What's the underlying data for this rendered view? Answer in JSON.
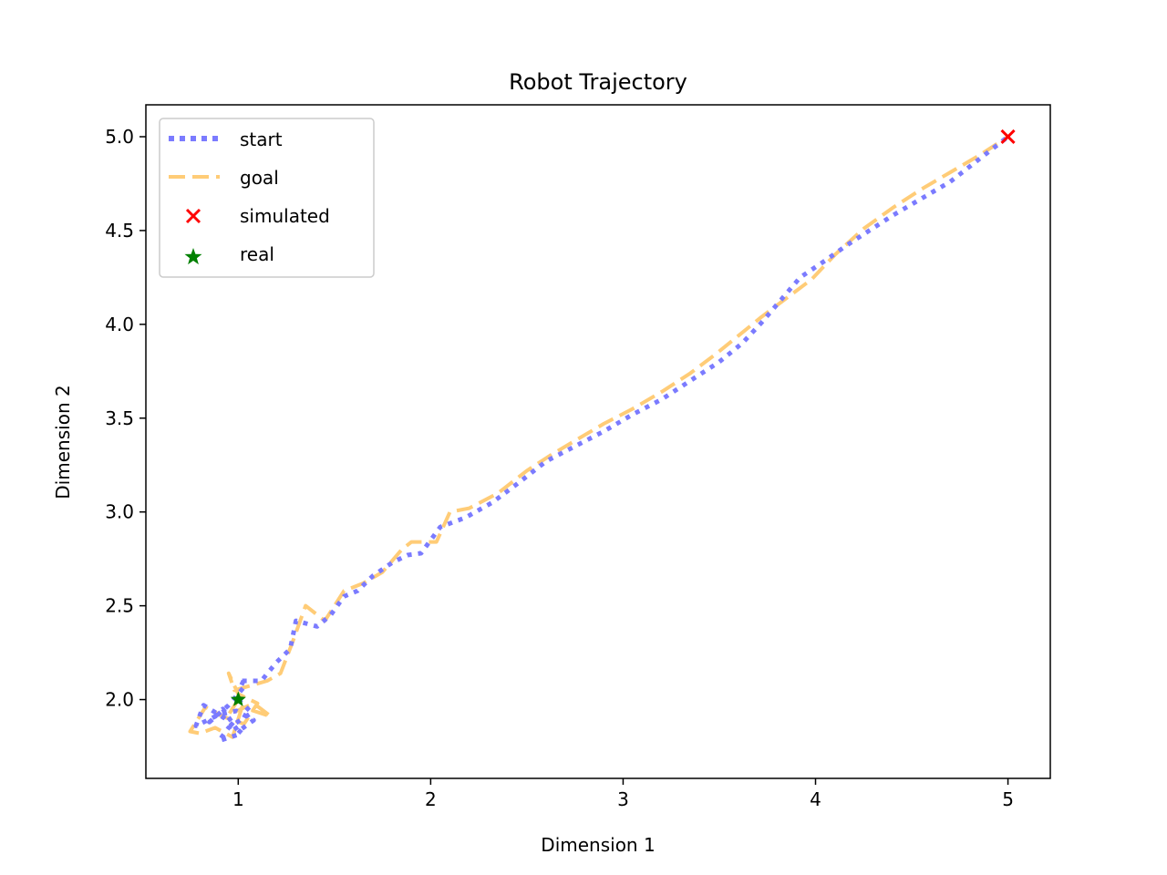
{
  "chart_data": {
    "type": "line",
    "title": "Robot Trajectory",
    "xlabel": "Dimension 1",
    "ylabel": "Dimension 2",
    "xlim": [
      0.52,
      5.22
    ],
    "ylim": [
      1.58,
      5.17
    ],
    "xticks": [
      1,
      2,
      3,
      4,
      5
    ],
    "yticks": [
      2.0,
      2.5,
      3.0,
      3.5,
      4.0,
      4.5,
      5.0
    ],
    "xtick_labels": [
      "1",
      "2",
      "3",
      "4",
      "5"
    ],
    "ytick_labels": [
      "2.0",
      "2.5",
      "3.0",
      "3.5",
      "4.0",
      "4.5",
      "5.0"
    ],
    "grid": false,
    "legend_position": "top-left",
    "series": [
      {
        "name": "start",
        "style": "dotted",
        "color": "#7b7bff",
        "x": [
          1.0,
          1.07,
          0.95,
          0.9,
          1.02,
          0.93,
          0.82,
          0.78,
          0.9,
          0.99,
          1.08,
          1.0,
          0.92,
          0.85,
          0.95,
          1.04,
          1.0,
          1.12,
          1.2,
          1.27,
          1.3,
          1.41,
          1.48,
          1.55,
          1.62,
          1.7,
          1.8,
          1.88,
          1.95,
          2.05,
          2.18,
          2.32,
          2.45,
          2.6,
          2.75,
          2.9,
          3.05,
          3.2,
          3.35,
          3.5,
          3.62,
          3.72,
          3.82,
          3.92,
          4.05,
          4.16,
          4.28,
          4.4,
          4.55,
          4.7,
          4.85,
          5.0
        ],
        "y": [
          2.0,
          1.93,
          1.85,
          1.78,
          1.82,
          1.9,
          1.97,
          1.86,
          1.92,
          1.94,
          1.89,
          1.83,
          1.95,
          1.88,
          1.97,
          2.08,
          2.1,
          2.1,
          2.2,
          2.27,
          2.42,
          2.39,
          2.45,
          2.55,
          2.58,
          2.66,
          2.73,
          2.77,
          2.78,
          2.92,
          2.97,
          3.05,
          3.15,
          3.27,
          3.35,
          3.43,
          3.52,
          3.6,
          3.7,
          3.8,
          3.9,
          4.01,
          4.13,
          4.25,
          4.34,
          4.42,
          4.5,
          4.58,
          4.67,
          4.76,
          4.88,
          5.0
        ]
      },
      {
        "name": "goal",
        "style": "dashed",
        "color": "#ffcc77",
        "x": [
          1.0,
          0.95,
          1.08,
          1.17,
          1.02,
          0.97,
          0.88,
          0.8,
          0.75,
          0.83,
          0.92,
          1.03,
          1.1,
          1.0,
          0.95,
          0.98,
          1.05,
          1.15,
          1.22,
          1.28,
          1.35,
          1.45,
          1.55,
          1.65,
          1.75,
          1.85,
          1.9,
          2.03,
          2.1,
          2.2,
          2.35,
          2.5,
          2.62,
          2.75,
          2.9,
          3.05,
          3.2,
          3.35,
          3.48,
          3.6,
          3.72,
          3.85,
          3.98,
          4.1,
          4.25,
          4.4,
          4.55,
          4.7,
          4.85,
          5.0
        ],
        "y": [
          2.0,
          1.92,
          1.98,
          1.91,
          1.96,
          1.8,
          1.85,
          1.82,
          1.83,
          1.96,
          1.91,
          1.87,
          1.98,
          2.03,
          2.14,
          2.05,
          2.07,
          2.1,
          2.14,
          2.3,
          2.5,
          2.42,
          2.58,
          2.62,
          2.68,
          2.8,
          2.84,
          2.84,
          3.0,
          3.02,
          3.1,
          3.22,
          3.3,
          3.38,
          3.47,
          3.55,
          3.64,
          3.74,
          3.84,
          3.94,
          4.04,
          4.14,
          4.24,
          4.37,
          4.51,
          4.62,
          4.72,
          4.81,
          4.9,
          5.0
        ]
      },
      {
        "name": "simulated",
        "marker": "x",
        "color": "#ff0000",
        "x": [
          5.0
        ],
        "y": [
          5.0
        ]
      },
      {
        "name": "real",
        "marker": "star",
        "color": "#008000",
        "x": [
          1.0
        ],
        "y": [
          2.0
        ]
      }
    ]
  }
}
